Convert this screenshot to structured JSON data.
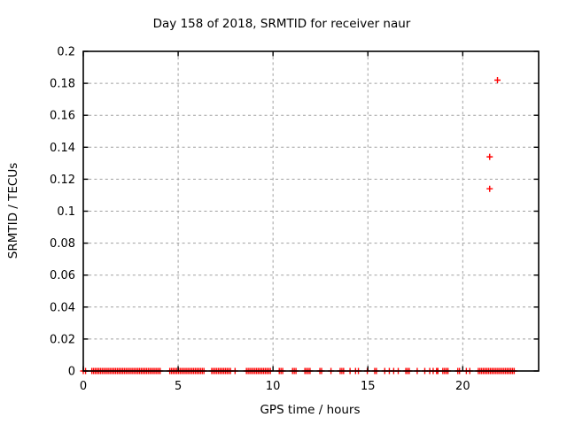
{
  "window": {
    "background_color": "#ffffff",
    "text_color": "#000000"
  },
  "chart_data": {
    "type": "scatter",
    "title": "Day 158 of 2018, SRMTID for receiver naur",
    "xlabel": "GPS time / hours",
    "ylabel": "SRMTID / TECUs",
    "xlim": [
      0,
      24
    ],
    "ylim": [
      0,
      0.2
    ],
    "xticks": [
      0,
      5,
      10,
      15,
      20
    ],
    "xtick_labels": [
      "0",
      "5",
      "10",
      "15",
      "20"
    ],
    "yticks": [
      0,
      0.02,
      0.04,
      0.06,
      0.08,
      0.1,
      0.12,
      0.14,
      0.16,
      0.18,
      0.2
    ],
    "ytick_labels": [
      "0",
      "0.02",
      "0.04",
      "0.06",
      "0.08",
      "0.1",
      "0.12",
      "0.14",
      "0.16",
      "0.18",
      "0.2"
    ],
    "grid": true,
    "grid_style": "dashed",
    "legend": "none",
    "marker": "plus",
    "marker_size": 7,
    "marker_color": "#ff0000",
    "grid_color": "#a0a0a0",
    "border_color": "#000000",
    "outlier_points": [
      {
        "x": 21.83,
        "y": 0.182
      },
      {
        "x": 21.42,
        "y": 0.134
      },
      {
        "x": 21.42,
        "y": 0.114
      }
    ],
    "baseline_value": 0,
    "baseline_step_hours": 0.09,
    "baseline_segments": [
      [
        0.0,
        0.0
      ],
      [
        0.12,
        0.12
      ],
      [
        0.45,
        4.11
      ],
      [
        4.56,
        6.36
      ],
      [
        6.77,
        7.76
      ],
      [
        8.0,
        8.0
      ],
      [
        8.6,
        9.91
      ],
      [
        10.33,
        10.51
      ],
      [
        11.03,
        11.21
      ],
      [
        11.68,
        12.01
      ],
      [
        12.47,
        12.61
      ],
      [
        13.03,
        13.08
      ],
      [
        13.54,
        13.73
      ],
      [
        14.06,
        14.06
      ],
      [
        14.35,
        14.35
      ],
      [
        14.5,
        14.5
      ],
      [
        14.97,
        14.97
      ],
      [
        15.36,
        15.5
      ],
      [
        15.89,
        15.89
      ],
      [
        16.13,
        16.13
      ],
      [
        16.36,
        16.36
      ],
      [
        16.6,
        16.6
      ],
      [
        17.0,
        17.23
      ],
      [
        17.6,
        17.6
      ],
      [
        18.0,
        18.0
      ],
      [
        18.26,
        18.26
      ],
      [
        18.44,
        18.44
      ],
      [
        18.62,
        18.62
      ],
      [
        18.69,
        18.69
      ],
      [
        18.95,
        19.28
      ],
      [
        19.74,
        19.84
      ],
      [
        20.19,
        20.19
      ],
      [
        20.37,
        20.37
      ],
      [
        20.82,
        22.78
      ]
    ]
  }
}
